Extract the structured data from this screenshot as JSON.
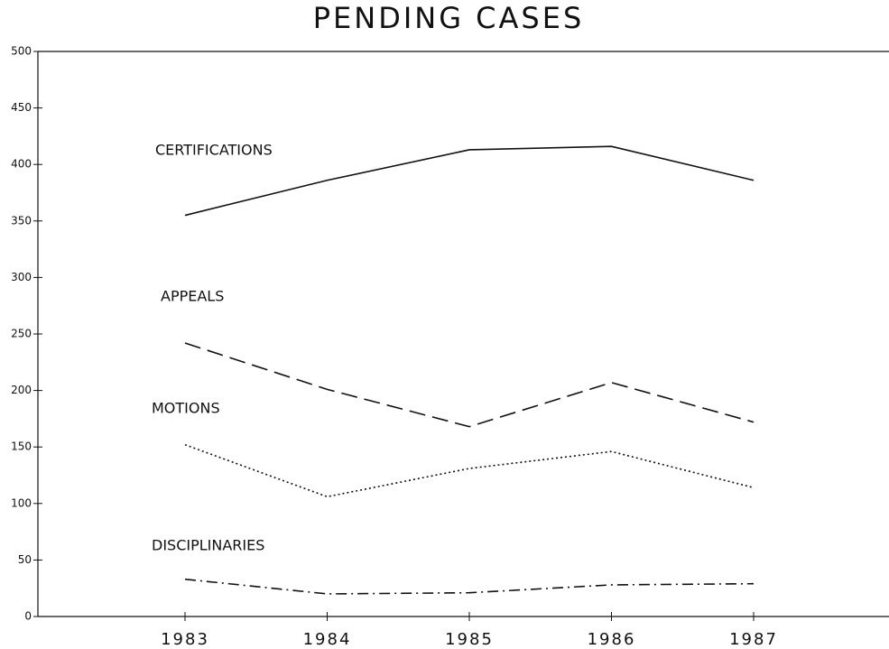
{
  "chart_data": {
    "type": "line",
    "title": "PENDING CASES",
    "categories": [
      "1983",
      "1984",
      "1985",
      "1986",
      "1987"
    ],
    "series": [
      {
        "name": "CERTIFICATIONS",
        "color": "#111111",
        "style": "solid",
        "values": [
          355,
          386,
          413,
          416,
          386
        ]
      },
      {
        "name": "APPEALS",
        "color": "#111111",
        "style": "dashed",
        "values": [
          242,
          201,
          168,
          207,
          172
        ]
      },
      {
        "name": "MOTIONS",
        "color": "#111111",
        "style": "dotted",
        "values": [
          152,
          106,
          131,
          146,
          114
        ]
      },
      {
        "name": "DISCIPLINARIES",
        "color": "#111111",
        "style": "dashdot",
        "values": [
          33,
          20,
          21,
          28,
          29
        ]
      }
    ],
    "ylim": [
      0,
      500
    ],
    "yticks": [
      0,
      50,
      100,
      150,
      200,
      250,
      300,
      350,
      400,
      450,
      500
    ]
  }
}
